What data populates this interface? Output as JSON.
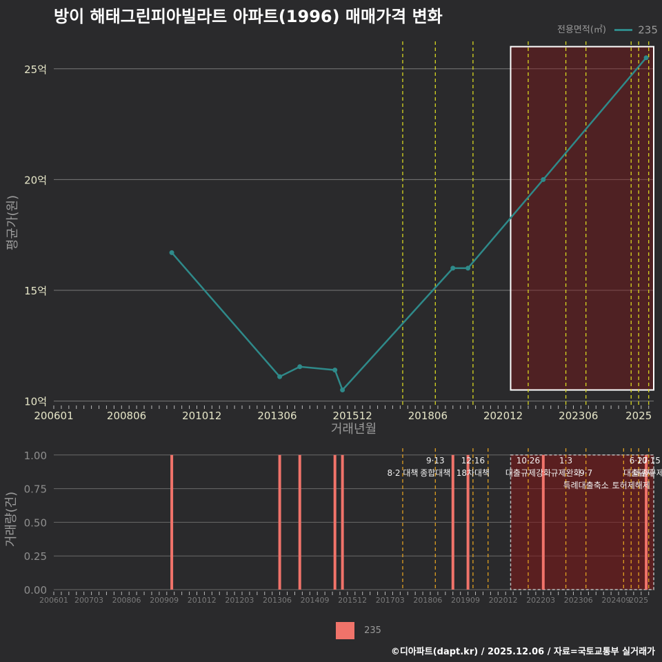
{
  "title": "방이 해태그린피아빌라트 아파트(1996) 매매가격 변화",
  "credit": "©디아파트(dapt.kr) / 2025.12.06 / 자료=국토교통부 실거래가",
  "legend": {
    "title": "전용면적(㎡)",
    "series": "235"
  },
  "colors": {
    "line": "#2f8a8a",
    "bar": "#f0736a",
    "policy_line": "#d8d820",
    "background": "#2a2a2c"
  },
  "chart_data": [
    {
      "type": "line",
      "name": "price",
      "xlabel": "거래년월",
      "ylabel": "평균가(원)",
      "ylim": [
        9.8,
        26.3
      ],
      "yticks": [
        10,
        15,
        20,
        25
      ],
      "ytick_labels": [
        "10억",
        "15억",
        "20억",
        "25억"
      ],
      "xticks": [
        "200601",
        "200806",
        "201012",
        "201306",
        "201512",
        "201806",
        "202012",
        "202306",
        "2025"
      ],
      "series": [
        {
          "name": "235",
          "points": [
            {
              "x": "2009-12",
              "y": 16.7
            },
            {
              "x": "2013-07",
              "y": 11.1
            },
            {
              "x": "2014-03",
              "y": 11.55
            },
            {
              "x": "2015-05",
              "y": 11.4
            },
            {
              "x": "2015-08",
              "y": 10.5
            },
            {
              "x": "2019-04",
              "y": 16.0
            },
            {
              "x": "2019-10",
              "y": 16.0
            },
            {
              "x": "2022-04",
              "y": 20.0
            },
            {
              "x": "2025-09",
              "y": 25.5
            }
          ]
        }
      ],
      "policy_dates": [
        "2017-08",
        "2018-09",
        "2019-12",
        "2021-10",
        "2023-01",
        "2023-09",
        "2025-03",
        "2025-06",
        "2025-10"
      ],
      "highlight": {
        "from": "2021-03",
        "to": "2025-12",
        "ymin": 10.5,
        "ymax": 26.0
      }
    },
    {
      "type": "bar",
      "name": "volume",
      "ylabel": "거래량(건)",
      "ylim": [
        0,
        1.05
      ],
      "yticks": [
        0,
        0.25,
        0.5,
        0.75,
        1.0
      ],
      "ytick_labels": [
        "0.00",
        "0.25",
        "0.50",
        "0.75",
        "1.00"
      ],
      "xticks": [
        "200601",
        "200703",
        "200806",
        "200909",
        "201012",
        "201203",
        "201306",
        "201409",
        "201512",
        "201703",
        "201806",
        "201909",
        "202012",
        "202203",
        "202306",
        "202409",
        "2025"
      ],
      "bars": [
        {
          "x": "2009-12",
          "value": 1
        },
        {
          "x": "2013-07",
          "value": 1
        },
        {
          "x": "2014-03",
          "value": 1
        },
        {
          "x": "2015-05",
          "value": 1
        },
        {
          "x": "2015-08",
          "value": 1
        },
        {
          "x": "2019-04",
          "value": 1
        },
        {
          "x": "2019-10",
          "value": 1
        },
        {
          "x": "2022-04",
          "value": 1
        },
        {
          "x": "2025-09",
          "value": 1
        }
      ],
      "policy_dates": [
        "2017-08",
        "2018-09",
        "2019-12",
        "2020-06",
        "2021-10",
        "2023-01",
        "2023-09",
        "2024-12",
        "2025-03",
        "2025-06",
        "2025-10"
      ],
      "policies": [
        {
          "x": "2017-08",
          "label": "8·2 대책",
          "row": 1
        },
        {
          "x": "2018-09",
          "label": "9·13",
          "row": 0
        },
        {
          "x": "2018-09",
          "label": "종합대책",
          "row": 1
        },
        {
          "x": "2019-12",
          "label": "12·16",
          "row": 0
        },
        {
          "x": "2019-12",
          "label": "18차대책",
          "row": 1
        },
        {
          "x": "2021-10",
          "label": "10·26",
          "row": 0
        },
        {
          "x": "2021-10",
          "label": "대출규제강화",
          "row": 1
        },
        {
          "x": "2023-01",
          "label": "1·3",
          "row": 0
        },
        {
          "x": "2023-01",
          "label": "규제완화",
          "row": 1
        },
        {
          "x": "2023-09",
          "label": "9·7",
          "row": 1
        },
        {
          "x": "2023-09",
          "label": "특례대출축소",
          "row": 2
        },
        {
          "x": "2025-03",
          "label": "토허제해제",
          "row": 2
        },
        {
          "x": "2025-06",
          "label": "6·27",
          "row": 0
        },
        {
          "x": "2025-06",
          "label": "대출규제",
          "row": 1
        },
        {
          "x": "2025-10",
          "label": "10·15",
          "row": 0
        },
        {
          "x": "2025-10",
          "label": "대출규제",
          "row": 1
        }
      ],
      "highlight": {
        "from": "2021-03",
        "to": "2025-12"
      }
    }
  ]
}
